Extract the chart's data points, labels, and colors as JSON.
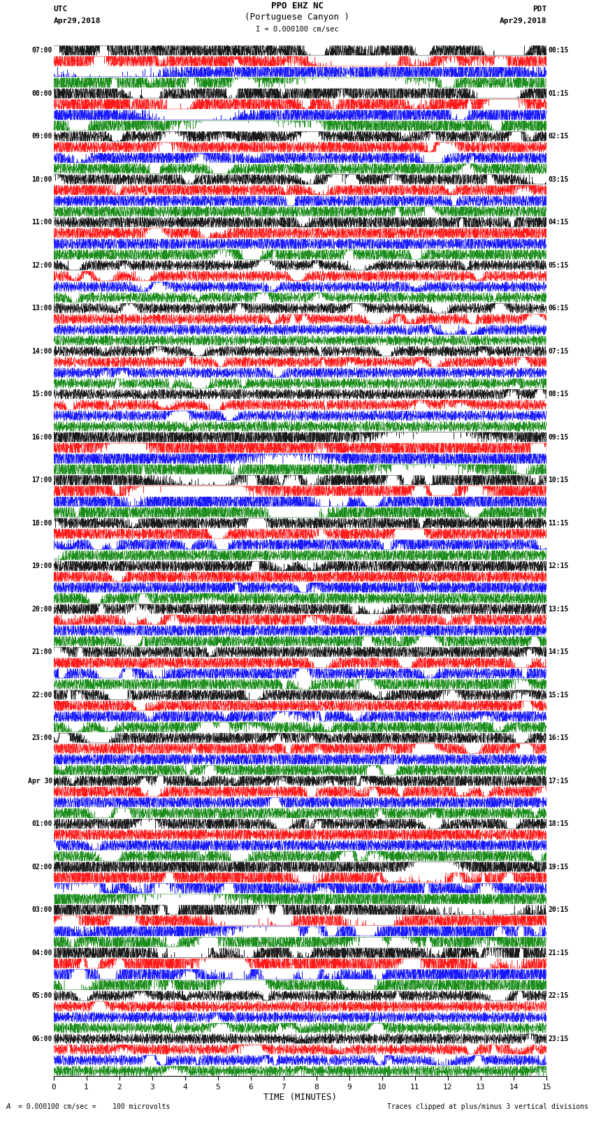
{
  "title_line1": "PPO EHZ NC",
  "title_line2": "(Portuguese Canyon )",
  "title_line3": "I = 0.000100 cm/sec",
  "left_label_top": "UTC",
  "left_label_date": "Apr29,2018",
  "right_label_top": "PDT",
  "right_label_date": "Apr29,2018",
  "xlabel": "TIME (MINUTES)",
  "bottom_left_text": "= 0.000100 cm/sec =    100 microvolts",
  "bottom_right_text": "Traces clipped at plus/minus 3 vertical divisions",
  "scale_label": "A",
  "utc_times": [
    "07:00",
    "08:00",
    "09:00",
    "10:00",
    "11:00",
    "12:00",
    "13:00",
    "14:00",
    "15:00",
    "16:00",
    "17:00",
    "18:00",
    "19:00",
    "20:00",
    "21:00",
    "22:00",
    "23:00",
    "Apr 30",
    "01:00",
    "02:00",
    "03:00",
    "04:00",
    "05:00",
    "06:00"
  ],
  "pdt_times": [
    "00:15",
    "01:15",
    "02:15",
    "03:15",
    "04:15",
    "05:15",
    "06:15",
    "07:15",
    "08:15",
    "09:15",
    "10:15",
    "11:15",
    "12:15",
    "13:15",
    "14:15",
    "15:15",
    "16:15",
    "17:15",
    "18:15",
    "19:15",
    "20:15",
    "21:15",
    "22:15",
    "23:15"
  ],
  "trace_colors": [
    "black",
    "red",
    "blue",
    "green"
  ],
  "n_blocks": 24,
  "n_points": 3000,
  "xlim": [
    0,
    15
  ],
  "bg_color": "white",
  "fig_width": 8.5,
  "fig_height": 16.13,
  "dpi": 100,
  "clip_val": 0.45
}
